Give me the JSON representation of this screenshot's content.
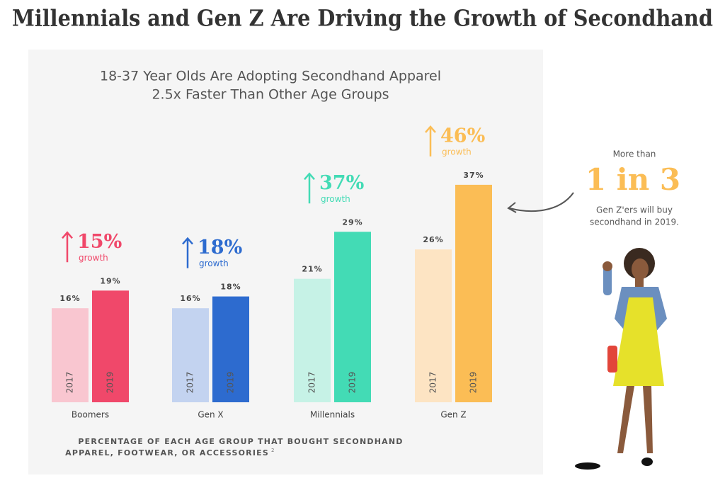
{
  "chart_data": {
    "type": "bar",
    "title": "Millennials and Gen Z Are Driving the Growth of Secondhand",
    "subtitle": [
      "18-37 Year Olds Are Adopting Secondhand Apparel",
      "2.5x Faster Than Other Age Groups"
    ],
    "categories": [
      "Boomers",
      "Gen X",
      "Millennials",
      "Gen Z"
    ],
    "series": [
      {
        "name": "2017",
        "colors": [
          "#f9c6d0",
          "#c3d3f0",
          "#c6f2e6",
          "#fde4c3"
        ],
        "values": [
          16,
          16,
          21,
          26
        ],
        "value_labels": [
          "16%",
          "16%",
          "21%",
          "26%"
        ]
      },
      {
        "name": "2019",
        "colors": [
          "#f0486a",
          "#2d6bcf",
          "#43dbb5",
          "#fbbd55"
        ],
        "values": [
          19,
          18,
          29,
          37
        ],
        "value_labels": [
          "19%",
          "18%",
          "29%",
          "37%"
        ]
      }
    ],
    "growth": {
      "values": [
        15,
        18,
        37,
        46
      ],
      "value_labels": [
        "15%",
        "18%",
        "37%",
        "46%"
      ],
      "text": "growth"
    },
    "note": [
      "PERCENTAGE OF EACH AGE GROUP THAT BOUGHT SECONDHAND",
      "APPAREL, FOOTWEAR, OR ACCESSORIES"
    ],
    "note_ref": "2",
    "callout": {
      "lead": "More than",
      "highlight": "1 in 3",
      "text": [
        "Gen Z'ers will buy",
        "secondhand in 2019."
      ]
    }
  }
}
